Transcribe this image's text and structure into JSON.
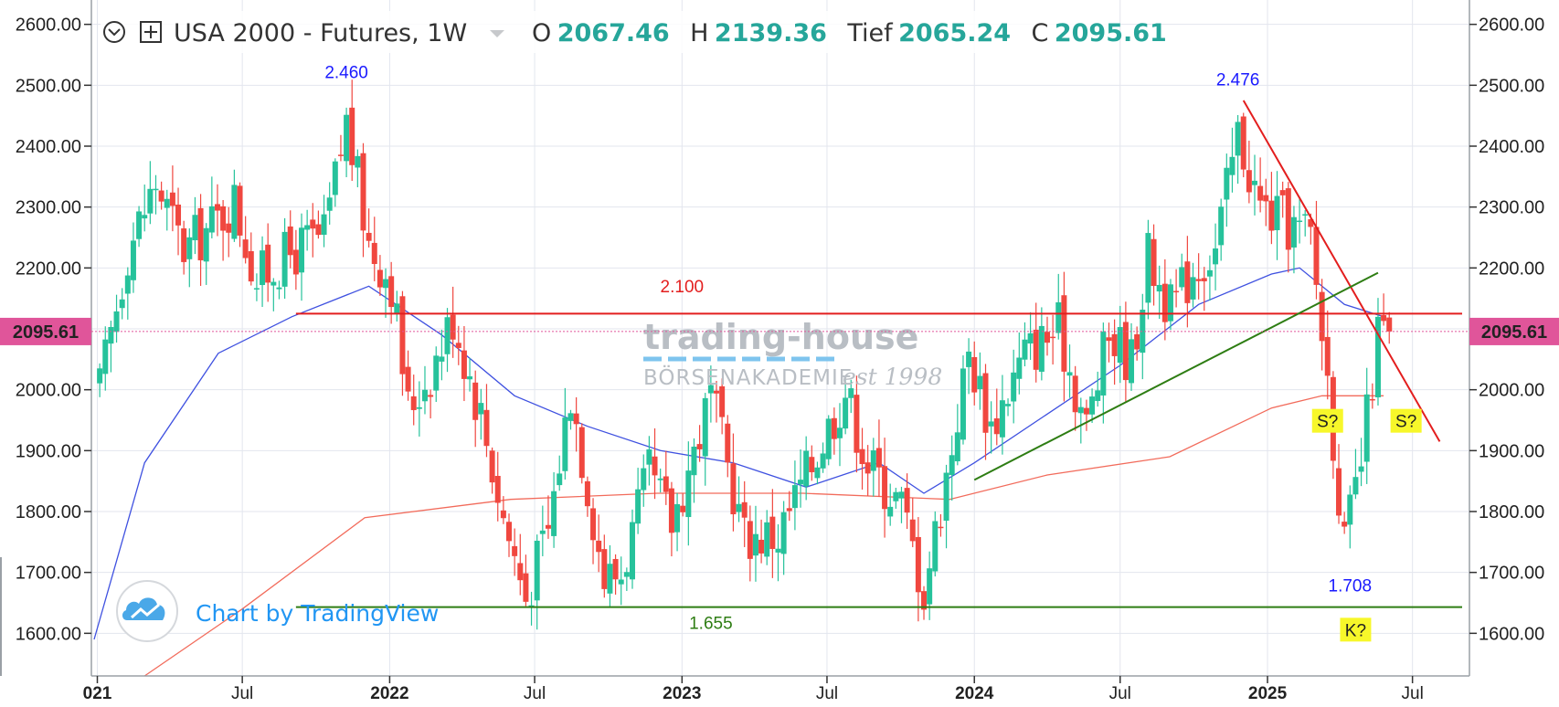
{
  "header": {
    "symbol": "USA 2000 - Futures, 1W",
    "o_label": "O",
    "o_value": "2067.46",
    "h_label": "H",
    "h_value": "2139.36",
    "l_label": "Tief",
    "l_value": "2065.24",
    "c_label": "C",
    "c_value": "2095.61",
    "collapse_icon": "chevron-circle-icon",
    "add_icon": "plus-square-icon"
  },
  "watermark": {
    "line1": "trading-house",
    "line2": "BÖRSENAKADEMIE",
    "line3": "est 1998"
  },
  "attribution": {
    "text": "Chart by TradingView",
    "icon": "tradingview-cloud-icon"
  },
  "colors": {
    "up": "#26c29b",
    "down": "#f0473f",
    "ma_fast": "#3f51e0",
    "ma_slow": "#f26b5b",
    "resistance": "#e31e1e",
    "support": "#2e7d13",
    "label_bg": "#ff0000",
    "last_price_bg": "#e0559a"
  },
  "chart_data": {
    "type": "candlestick",
    "timeframe": "1W",
    "ylim": [
      1530,
      2640
    ],
    "y_ticks": [
      1600,
      1700,
      1800,
      1900,
      2000,
      2100,
      2200,
      2300,
      2400,
      2500,
      2600
    ],
    "y_tick_labels": [
      "1600.00",
      "1700.00",
      "1800.00",
      "1900.00",
      "2000.00",
      "2100.00",
      "2200.00",
      "2300.00",
      "2400.00",
      "2500.00",
      "2600.00"
    ],
    "x_range": [
      "2020-12-28",
      "2025-09-01"
    ],
    "x_ticks": [
      {
        "date": "2021-01-01",
        "label": "021",
        "bold": true
      },
      {
        "date": "2021-07-01",
        "label": "Jul",
        "bold": false
      },
      {
        "date": "2022-01-01",
        "label": "2022",
        "bold": true
      },
      {
        "date": "2022-07-01",
        "label": "Jul",
        "bold": false
      },
      {
        "date": "2023-01-01",
        "label": "2023",
        "bold": true
      },
      {
        "date": "2023-07-01",
        "label": "Jul",
        "bold": false
      },
      {
        "date": "2024-01-01",
        "label": "2024",
        "bold": true
      },
      {
        "date": "2024-07-01",
        "label": "Jul",
        "bold": false
      },
      {
        "date": "2025-01-01",
        "label": "2025",
        "bold": true
      },
      {
        "date": "2025-07-01",
        "label": "Jul",
        "bold": false
      }
    ],
    "last_price": 2095.61,
    "last_price_label": "2095.61",
    "price_path": [
      [
        "2021-01-04",
        2000
      ],
      [
        "2021-02-08",
        2230
      ],
      [
        "2021-03-15",
        2340
      ],
      [
        "2021-04-19",
        2230
      ],
      [
        "2021-05-24",
        2270
      ],
      [
        "2021-06-21",
        2310
      ],
      [
        "2021-07-19",
        2180
      ],
      [
        "2021-08-16",
        2210
      ],
      [
        "2021-09-20",
        2240
      ],
      [
        "2021-10-11",
        2250
      ],
      [
        "2021-11-08",
        2440
      ],
      [
        "2021-12-06",
        2240
      ],
      [
        "2022-01-03",
        2180
      ],
      [
        "2022-01-24",
        1970
      ],
      [
        "2022-02-21",
        2030
      ],
      [
        "2022-03-21",
        2120
      ],
      [
        "2022-04-25",
        1960
      ],
      [
        "2022-05-23",
        1790
      ],
      [
        "2022-06-20",
        1660
      ],
      [
        "2022-07-18",
        1770
      ],
      [
        "2022-08-15",
        2000
      ],
      [
        "2022-09-26",
        1690
      ],
      [
        "2022-10-17",
        1700
      ],
      [
        "2022-11-21",
        1860
      ],
      [
        "2022-12-19",
        1780
      ],
      [
        "2023-02-06",
        1990
      ],
      [
        "2023-03-20",
        1760
      ],
      [
        "2023-05-01",
        1760
      ],
      [
        "2023-06-12",
        1880
      ],
      [
        "2023-07-24",
        2000
      ],
      [
        "2023-08-21",
        1880
      ],
      [
        "2023-10-02",
        1810
      ],
      [
        "2023-10-30",
        1670
      ],
      [
        "2023-11-27",
        1860
      ],
      [
        "2023-12-25",
        2060
      ],
      [
        "2024-01-22",
        1940
      ],
      [
        "2024-03-04",
        2060
      ],
      [
        "2024-04-15",
        2100
      ],
      [
        "2024-05-20",
        1940
      ],
      [
        "2024-06-17",
        2090
      ],
      [
        "2024-07-15",
        2050
      ],
      [
        "2024-08-05",
        2220
      ],
      [
        "2024-09-02",
        2130
      ],
      [
        "2024-09-30",
        2200
      ],
      [
        "2024-10-28",
        2230
      ],
      [
        "2024-11-25",
        2420
      ],
      [
        "2024-12-23",
        2300
      ],
      [
        "2025-01-27",
        2270
      ],
      [
        "2025-02-24",
        2250
      ],
      [
        "2025-03-17",
        2020
      ],
      [
        "2025-04-07",
        1740
      ],
      [
        "2025-04-28",
        1880
      ],
      [
        "2025-05-19",
        2090
      ],
      [
        "2025-06-02",
        2095.61
      ]
    ],
    "moving_averages": [
      {
        "color": "#3f51e0",
        "points": [
          [
            "2020-12-28",
            1590
          ],
          [
            "2021-03-01",
            1880
          ],
          [
            "2021-06-01",
            2060
          ],
          [
            "2021-09-01",
            2120
          ],
          [
            "2021-12-06",
            2170
          ],
          [
            "2022-03-07",
            2090
          ],
          [
            "2022-06-06",
            1990
          ],
          [
            "2022-09-05",
            1940
          ],
          [
            "2022-12-05",
            1900
          ],
          [
            "2023-03-06",
            1880
          ],
          [
            "2023-06-05",
            1840
          ],
          [
            "2023-09-04",
            1880
          ],
          [
            "2023-10-30",
            1830
          ],
          [
            "2024-01-01",
            1880
          ],
          [
            "2024-04-01",
            1960
          ],
          [
            "2024-07-01",
            2040
          ],
          [
            "2024-10-07",
            2140
          ],
          [
            "2025-01-06",
            2190
          ],
          [
            "2025-02-10",
            2200
          ],
          [
            "2025-04-07",
            2140
          ],
          [
            "2025-05-26",
            2120
          ]
        ]
      },
      {
        "color": "#f26b5b",
        "points": [
          [
            "2021-03-01",
            1530
          ],
          [
            "2021-07-01",
            1640
          ],
          [
            "2021-12-01",
            1790
          ],
          [
            "2022-06-01",
            1820
          ],
          [
            "2022-12-01",
            1830
          ],
          [
            "2023-06-01",
            1830
          ],
          [
            "2023-12-01",
            1820
          ],
          [
            "2024-04-01",
            1860
          ],
          [
            "2024-09-01",
            1890
          ],
          [
            "2025-01-06",
            1970
          ],
          [
            "2025-03-10",
            1990
          ],
          [
            "2025-05-26",
            1990
          ]
        ]
      }
    ],
    "lines": [
      {
        "color": "#e31e1e",
        "from": [
          "2021-09-06",
          2125
        ],
        "to": [
          "2025-09-01",
          2125
        ]
      },
      {
        "color": "#2e7d13",
        "from": [
          "2021-09-06",
          1643
        ],
        "to": [
          "2025-09-01",
          1643
        ]
      },
      {
        "color": "#e31e1e",
        "from": [
          "2024-12-02",
          2475
        ],
        "to": [
          "2025-08-04",
          1915
        ]
      },
      {
        "color": "#2e7d13",
        "from": [
          "2024-01-01",
          1852
        ],
        "to": [
          "2025-05-19",
          2192
        ]
      }
    ],
    "annotations": [
      {
        "text": "2.460",
        "date": "2021-11-08",
        "price": 2512,
        "color": "#1a1aff"
      },
      {
        "text": "2.476",
        "date": "2024-11-25",
        "price": 2500,
        "color": "#1a1aff"
      },
      {
        "text": "2.100",
        "date": "2023-01-01",
        "price": 2160,
        "color": "#e31e1e"
      },
      {
        "text": "1.655",
        "date": "2023-02-06",
        "price": 1607,
        "color": "#2e7d13"
      },
      {
        "text": "1.708",
        "date": "2025-04-14",
        "price": 1669,
        "color": "#1a1aff"
      }
    ],
    "boxes": [
      {
        "text": "S?",
        "date": "2025-03-17",
        "price": 1949
      },
      {
        "text": "S?",
        "date": "2025-06-23",
        "price": 1949
      },
      {
        "text": "K?",
        "date": "2025-04-21",
        "price": 1606
      }
    ]
  }
}
